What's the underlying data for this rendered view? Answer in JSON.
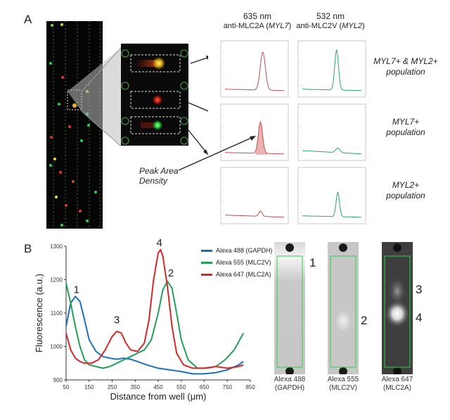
{
  "panel_a": {
    "letter": "A",
    "col_headers": [
      {
        "wl": "635 nm",
        "ab": "anti-MLC2A (",
        "gene": "MYL7",
        "close": ")"
      },
      {
        "wl": "532 nm",
        "ab": "anti-MLC2V (",
        "gene": "MYL2",
        "close": ")"
      }
    ],
    "rows": [
      {
        "label_gene": "MYL7+ & MYL2+",
        "label_rest": "population"
      },
      {
        "label_gene": "MYL7+",
        "label_rest": "population"
      },
      {
        "label_gene": "MYL2+",
        "label_rest": "population"
      }
    ],
    "peak_label": "Peak Area\nDensity",
    "colors": {
      "red": "#c0504d",
      "green": "#2aa86a"
    }
  },
  "panel_b": {
    "letter": "B",
    "images": [
      {
        "caption_line1": "Alexa 488",
        "caption_line2": "(GAPDH)",
        "labels": [
          "1"
        ]
      },
      {
        "caption_line1": "Alexa 555",
        "caption_line2": "(MLC2V)",
        "labels": [
          "2"
        ]
      },
      {
        "caption_line1": "Alexa 647",
        "caption_line2": "(MLC2A)",
        "labels": [
          "3",
          "4"
        ]
      }
    ]
  },
  "chart_data": {
    "type": "line",
    "xlabel": "Distance from well (μm)",
    "ylabel": "Fluorescence (a.u.)",
    "xlim": [
      50,
      850
    ],
    "ylim": [
      900,
      1300
    ],
    "xticks": [
      50,
      150,
      250,
      350,
      450,
      550,
      650,
      750,
      850
    ],
    "yticks": [
      900,
      1000,
      1100,
      1200,
      1300
    ],
    "legend_position": "top-right",
    "series": [
      {
        "name": "Alexa 488 (GAPDH)",
        "color": "#1f6fbf",
        "x": [
          50,
          70,
          90,
          110,
          130,
          150,
          180,
          210,
          240,
          270,
          300,
          330,
          360,
          400,
          450,
          500,
          550,
          600,
          650,
          700,
          750,
          800,
          820
        ],
        "y": [
          1060,
          1130,
          1150,
          1135,
          1080,
          1020,
          985,
          970,
          965,
          962,
          965,
          962,
          955,
          945,
          935,
          930,
          925,
          918,
          918,
          922,
          930,
          945,
          955
        ]
      },
      {
        "name": "Alexa 555 (MLC2V)",
        "color": "#22a05a",
        "x": [
          50,
          70,
          90,
          110,
          130,
          150,
          180,
          210,
          240,
          270,
          300,
          330,
          360,
          390,
          420,
          450,
          470,
          490,
          510,
          530,
          550,
          580,
          620,
          660,
          700,
          740,
          780,
          820
        ],
        "y": [
          1190,
          1130,
          1060,
          1000,
          960,
          945,
          940,
          935,
          940,
          950,
          960,
          970,
          980,
          990,
          1020,
          1100,
          1170,
          1195,
          1175,
          1100,
          1020,
          960,
          935,
          935,
          940,
          960,
          990,
          1040
        ]
      },
      {
        "name": "Alexa 647 (MLC2A)",
        "color": "#d62828",
        "x": [
          50,
          70,
          90,
          110,
          130,
          160,
          190,
          220,
          250,
          270,
          290,
          310,
          330,
          360,
          390,
          410,
          430,
          450,
          460,
          470,
          490,
          510,
          530,
          560,
          600,
          650,
          700,
          750,
          800,
          820
        ],
        "y": [
          1040,
          990,
          965,
          955,
          950,
          950,
          960,
          990,
          1030,
          1045,
          1040,
          1010,
          990,
          985,
          1010,
          1080,
          1200,
          1280,
          1290,
          1270,
          1180,
          1060,
          980,
          945,
          935,
          935,
          940,
          935,
          940,
          945
        ]
      }
    ],
    "annotations": [
      {
        "text": "1",
        "x": 95,
        "y": 1160
      },
      {
        "text": "2",
        "x": 505,
        "y": 1210
      },
      {
        "text": "3",
        "x": 270,
        "y": 1070
      },
      {
        "text": "4",
        "x": 455,
        "y": 1300
      }
    ]
  }
}
